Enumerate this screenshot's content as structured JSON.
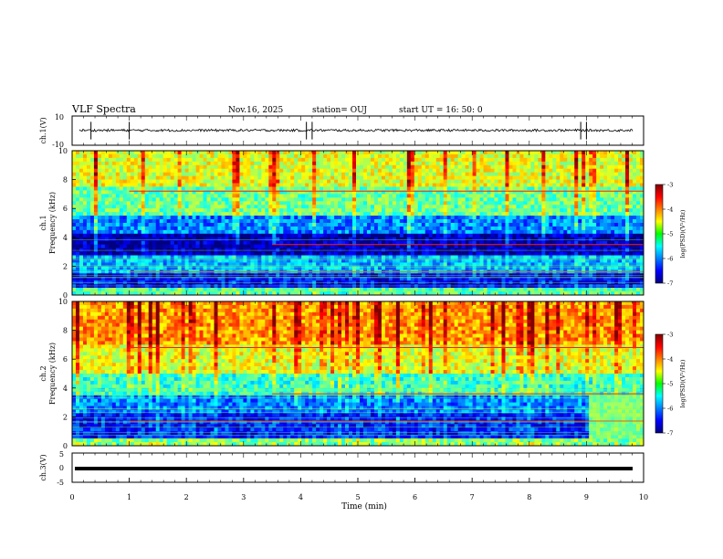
{
  "header": {
    "title": "VLF Spectra",
    "date": "Nov.16, 2025",
    "station": "station= OUJ",
    "start": "start  UT =   16: 50: 0"
  },
  "chart_data": [
    {
      "id": "ch1-waveform",
      "type": "line",
      "ylabel": "ch.1(V)",
      "ylim": [
        -10,
        10
      ],
      "yticks": [
        "10",
        "-10"
      ],
      "xlim": [
        0,
        10
      ],
      "mean_level": 0.2,
      "spike_times_min": [
        0.33,
        1.0,
        4.1,
        4.2,
        8.9,
        9.0
      ]
    },
    {
      "id": "ch1-spectrogram",
      "type": "heatmap",
      "ylabel": "Frequency (kHz)",
      "channel_label": "ch.1",
      "xlim": [
        0,
        10
      ],
      "ylim": [
        0,
        10
      ],
      "yticks": [
        "0",
        "2",
        "4",
        "6",
        "8",
        "10"
      ],
      "colorbar": {
        "label": "log(PSD)(V²/Hz)",
        "range": [
          -7,
          -3
        ],
        "ticks": [
          "-3",
          "-4",
          "-5",
          "-6",
          "-7"
        ]
      },
      "band_levels_log_psd": [
        {
          "f_kHz": [
            0,
            0.5
          ],
          "level": -5.2
        },
        {
          "f_kHz": [
            0.5,
            1.5
          ],
          "level": -6.5
        },
        {
          "f_kHz": [
            1.5,
            2.8
          ],
          "level": -5.8
        },
        {
          "f_kHz": [
            2.8,
            4.2
          ],
          "level": -6.8
        },
        {
          "f_kHz": [
            4.2,
            5.5
          ],
          "level": -6.0
        },
        {
          "f_kHz": [
            5.5,
            7.5
          ],
          "level": -5.1
        },
        {
          "f_kHz": [
            7.5,
            10
          ],
          "level": -4.6
        }
      ],
      "tone_lines_kHz": [
        7.2,
        3.5,
        1.6
      ]
    },
    {
      "id": "ch2-spectrogram",
      "type": "heatmap",
      "ylabel": "Frequency (kHz)",
      "channel_label": "ch.2",
      "xlim": [
        0,
        10
      ],
      "ylim": [
        0,
        10
      ],
      "yticks": [
        "0",
        "2",
        "4",
        "6",
        "8",
        "10"
      ],
      "colorbar": {
        "label": "log(PSD)(V²/Hz)",
        "range": [
          -7,
          -3
        ],
        "ticks": [
          "-3",
          "-4",
          "-5",
          "-6",
          "-7"
        ]
      },
      "band_levels_log_psd": [
        {
          "f_kHz": [
            0,
            0.5
          ],
          "level": -5.0
        },
        {
          "f_kHz": [
            0.5,
            2.2
          ],
          "level": -6.4
        },
        {
          "f_kHz": [
            2.2,
            3.5
          ],
          "level": -6.0
        },
        {
          "f_kHz": [
            3.5,
            5.0
          ],
          "level": -5.3
        },
        {
          "f_kHz": [
            5.0,
            7.0
          ],
          "level": -4.6
        },
        {
          "f_kHz": [
            7.0,
            10
          ],
          "level": -4.1
        }
      ],
      "tone_lines_kHz": [
        6.8,
        3.6,
        1.7
      ]
    },
    {
      "id": "ch3-waveform",
      "type": "line",
      "ylabel": "ch.3(V)",
      "ylim": [
        -5,
        5
      ],
      "yticks": [
        "5",
        "0",
        "-5"
      ],
      "xlim": [
        0,
        10
      ],
      "mean_level": -0.3,
      "xlabel": "Time  (min)",
      "xticks": [
        "0",
        "1",
        "2",
        "3",
        "4",
        "5",
        "6",
        "7",
        "8",
        "9",
        "10"
      ]
    }
  ]
}
